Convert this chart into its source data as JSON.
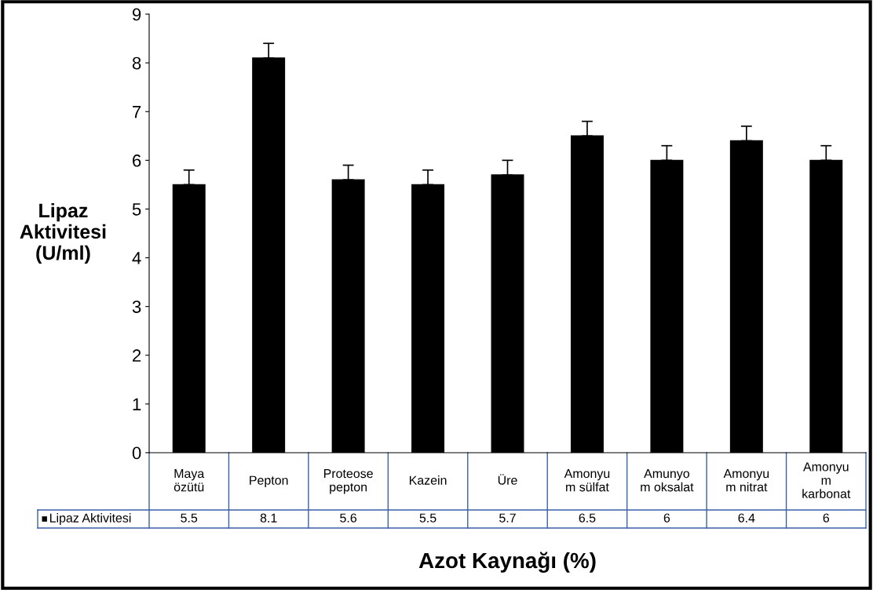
{
  "chart_data": {
    "type": "bar",
    "xlabel": "Azot Kaynağı (%)",
    "ylabel": "Lipaz\nAktivitesi\n(U/ml)",
    "categories": [
      "Maya\nözütü",
      "Pepton",
      "Proteose\npepton",
      "Kazein",
      "Üre",
      "Amonyu\nm sülfat",
      "Amunyo\nm oksalat",
      "Amonyu\nm nitrat",
      "Amonyu\nm\nkarbonat"
    ],
    "series": [
      {
        "name": "Lipaz Aktivitesi",
        "color": "#000000",
        "values": [
          5.5,
          8.1,
          5.6,
          5.5,
          5.7,
          6.5,
          6,
          6.4,
          6
        ],
        "errors": [
          [
            5.5,
            5.8
          ],
          [
            8.1,
            8.4
          ],
          [
            5.6,
            5.9
          ],
          [
            5.5,
            5.8
          ],
          [
            5.7,
            6.0
          ],
          [
            6.5,
            6.8
          ],
          [
            6,
            6.3
          ],
          [
            6.4,
            6.7
          ],
          [
            6,
            6.3
          ]
        ]
      }
    ],
    "ylim": [
      0,
      9
    ],
    "yticks": [
      0,
      1,
      2,
      3,
      4,
      5,
      6,
      7,
      8,
      9
    ],
    "data_labels": true,
    "grid": false
  }
}
